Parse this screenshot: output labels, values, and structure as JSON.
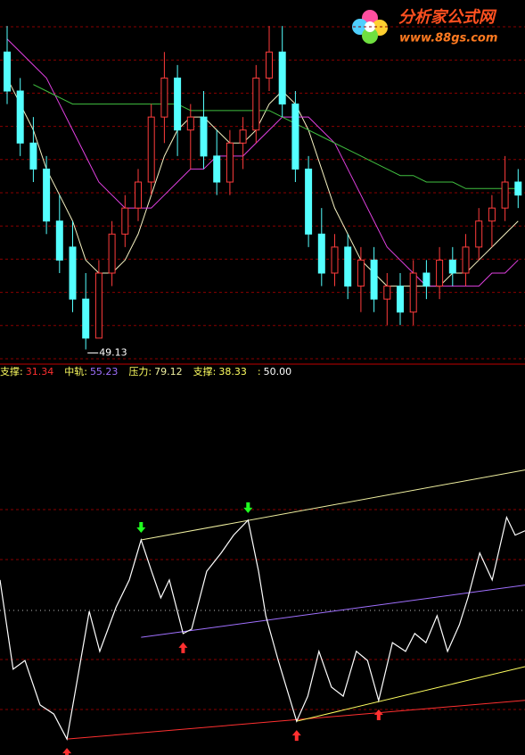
{
  "logo": {
    "title": "分析家公式网",
    "url": "www.88gs.com"
  },
  "chart_data": [
    {
      "type": "candlestick",
      "ylim": [
        48,
        76
      ],
      "grid": true,
      "up_color": "#ff3c3c",
      "down_color": "#54ffff",
      "ohlc": [
        [
          72,
          74,
          68,
          69
        ],
        [
          69,
          70,
          64,
          65
        ],
        [
          65,
          67,
          62,
          63
        ],
        [
          63,
          64,
          58,
          59
        ],
        [
          59,
          61,
          55,
          56
        ],
        [
          57,
          59,
          52,
          53
        ],
        [
          53,
          55,
          49.13,
          50
        ],
        [
          50,
          56,
          50,
          55
        ],
        [
          55,
          59,
          54,
          58
        ],
        [
          58,
          61,
          57,
          60
        ],
        [
          60,
          63,
          59,
          62
        ],
        [
          62,
          68,
          61,
          67
        ],
        [
          67,
          72,
          65,
          70
        ],
        [
          70,
          71,
          64,
          66
        ],
        [
          66,
          68,
          63,
          67
        ],
        [
          67,
          69,
          63,
          64
        ],
        [
          64,
          66,
          61,
          62
        ],
        [
          62,
          66,
          61,
          65
        ],
        [
          65,
          67,
          63,
          66
        ],
        [
          66,
          71,
          65,
          70
        ],
        [
          70,
          74,
          69,
          72
        ],
        [
          72,
          74,
          67,
          68
        ],
        [
          68,
          69,
          62,
          63
        ],
        [
          63,
          64,
          57,
          58
        ],
        [
          58,
          60,
          54,
          55
        ],
        [
          55,
          58,
          54,
          57
        ],
        [
          57,
          58,
          53,
          54
        ],
        [
          54,
          57,
          52,
          56
        ],
        [
          56,
          57,
          52,
          53
        ],
        [
          53,
          55,
          51,
          54
        ],
        [
          54,
          55,
          51,
          52
        ],
        [
          52,
          56,
          51,
          55
        ],
        [
          55,
          56,
          53,
          54
        ],
        [
          54,
          57,
          53,
          56
        ],
        [
          56,
          57,
          54,
          55
        ],
        [
          55,
          58,
          54,
          57
        ],
        [
          57,
          60,
          56,
          59
        ],
        [
          59,
          61,
          57,
          60
        ],
        [
          60,
          64,
          59,
          62
        ],
        [
          62,
          63,
          60,
          61
        ]
      ],
      "series": [
        {
          "color": "#f4f0c0",
          "values": [
            70,
            68,
            66,
            63,
            61,
            59,
            56,
            55,
            55,
            56,
            58,
            61,
            64,
            66,
            67,
            67,
            66,
            65,
            65,
            66,
            68,
            69,
            68,
            66,
            63,
            60,
            58,
            56,
            55,
            54,
            54,
            54,
            54,
            54,
            55,
            55,
            56,
            57,
            58,
            59
          ]
        },
        {
          "color": "#e040e0",
          "values": [
            73,
            72,
            71,
            70,
            68,
            66,
            64,
            62,
            61,
            60,
            60,
            60,
            61,
            62,
            63,
            63,
            64,
            64,
            64,
            65,
            66,
            67,
            67,
            67,
            66,
            65,
            63,
            61,
            59,
            57,
            56,
            55,
            54,
            54,
            54,
            54,
            54,
            55,
            55,
            56
          ]
        },
        {
          "color": "#40c040",
          "values": [
            null,
            null,
            69.5,
            69,
            68.5,
            68,
            68,
            68,
            68,
            68,
            68,
            68,
            68,
            68,
            67.5,
            67.5,
            67.5,
            67.5,
            67.5,
            67.5,
            67.5,
            67,
            66.5,
            66,
            65.5,
            65,
            64.5,
            64,
            63.5,
            63,
            62.5,
            62.5,
            62,
            62,
            62,
            61.5,
            61.5,
            61.5,
            61.5,
            61.5
          ]
        }
      ],
      "annotation": {
        "index": 6,
        "value": 49.13
      }
    },
    {
      "type": "line",
      "legend": [
        {
          "label": "支撑:",
          "value": 31.34,
          "color": "#ff3030"
        },
        {
          "label": "中轨:",
          "value": 55.23,
          "color": "#a070ff"
        },
        {
          "label": "压力:",
          "value": 79.12,
          "color": "#f0f0a0"
        },
        {
          "label": "支撑:",
          "value": 38.33,
          "color": "#ffff60"
        },
        {
          "label": ":",
          "value": 50,
          "value_label": "50.00",
          "color": "#ffffff"
        }
      ],
      "xlim": [
        0,
        80
      ],
      "ylim": [
        20,
        97
      ],
      "x": [
        0,
        2,
        3.8,
        6.1,
        8.2,
        10.2,
        13.6,
        15.2,
        17.7,
        19.7,
        21.5,
        23.1,
        24.5,
        25.8,
        27.9,
        29.2,
        31.5,
        33.7,
        35.6,
        37.8,
        39.4,
        40.5,
        42.4,
        45.2,
        46.9,
        48.6,
        50.5,
        52.3,
        54.3,
        56,
        57.7,
        59.8,
        61.8,
        63.2,
        64.9,
        66.6,
        68.2,
        70,
        71.3,
        73.1,
        75,
        77.2,
        78.5,
        80
      ],
      "values": [
        56.3,
        37.8,
        39.6,
        30.4,
        28.5,
        23.3,
        49.8,
        41.5,
        50.7,
        56.3,
        64.6,
        58.1,
        52.6,
        56.3,
        45.2,
        46.1,
        58.1,
        61.9,
        65.6,
        68.7,
        58.1,
        48.9,
        39.6,
        27,
        32.2,
        41.5,
        34.1,
        32.2,
        41.5,
        39.6,
        31.3,
        43.3,
        41.5,
        45.2,
        43.3,
        48.9,
        41.5,
        47,
        52.6,
        61.9,
        56.3,
        69.3,
        65.6,
        66.5
      ],
      "color": "#ffffff",
      "trend_lines": [
        {
          "color": "#ff3030",
          "x": [
            10.2,
            80
          ],
          "values": [
            23.3,
            31.34
          ]
        },
        {
          "color": "#a070ff",
          "x": [
            21.5,
            80
          ],
          "values": [
            44.4,
            55.23
          ]
        },
        {
          "color": "#f0f0a0",
          "x": [
            21.5,
            80
          ],
          "values": [
            64.6,
            79.12
          ]
        },
        {
          "color": "#ffff60",
          "x": [
            45.2,
            80
          ],
          "values": [
            27,
            38.33
          ]
        }
      ],
      "down_arrows": [
        21.5,
        37.8
      ],
      "down_color": "#20ff20",
      "up_arrows": [
        10.2,
        27.9,
        45.2,
        57.7
      ],
      "up_color": "#ff3030"
    }
  ]
}
